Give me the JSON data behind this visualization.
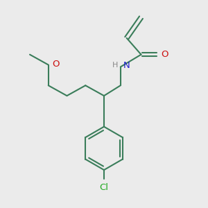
{
  "background_color": "#ebebeb",
  "bond_color": "#3a7d5a",
  "N_color": "#2020cc",
  "O_color": "#cc1010",
  "Cl_color": "#22aa22",
  "H_color": "#888888",
  "line_width": 1.5,
  "font_size": 9.5,
  "figsize": [
    3.0,
    3.0
  ],
  "dpi": 100,
  "xlim": [
    0,
    10
  ],
  "ylim": [
    0,
    10
  ]
}
